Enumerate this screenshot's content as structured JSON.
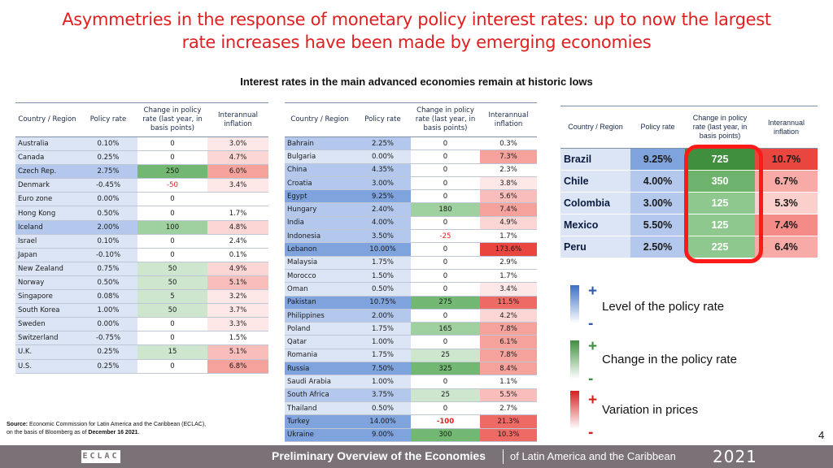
{
  "title": {
    "line1": "Asymmetries in the response of monetary policy interest rates: up to now the largest",
    "line2": "rate increases have been made by emerging economies"
  },
  "subtitle": "Interest rates in the main advanced economies remain at historic lows",
  "table_headers": {
    "country_left": "Country / Region",
    "country_right": "Country / Region",
    "policy_rate": "Policy rate",
    "change": "Change in policy rate (last year, in basis points)",
    "inflation": "Interannual inflation"
  },
  "table_left": [
    {
      "country": "Australia",
      "rate": "0.10%",
      "change": "0",
      "inflation": "3.0%"
    },
    {
      "country": "Canada",
      "rate": "0.25%",
      "change": "0",
      "inflation": "4.7%"
    },
    {
      "country": "Czech Rep.",
      "rate": "2.75%",
      "change": "250",
      "inflation": "6.0%"
    },
    {
      "country": "Denmark",
      "rate": "-0.45%",
      "change": "-50",
      "inflation": "3.4%"
    },
    {
      "country": "Euro zone",
      "rate": "0.00%",
      "change": "0",
      "inflation": ""
    },
    {
      "country": "Hong Kong",
      "rate": "0.50%",
      "change": "0",
      "inflation": "1.7%"
    },
    {
      "country": "Iceland",
      "rate": "2.00%",
      "change": "100",
      "inflation": "4.8%"
    },
    {
      "country": "Israel",
      "rate": "0.10%",
      "change": "0",
      "inflation": "2.4%"
    },
    {
      "country": "Japan",
      "rate": "-0.10%",
      "change": "0",
      "inflation": "0.1%"
    },
    {
      "country": "New Zealand",
      "rate": "0.75%",
      "change": "50",
      "inflation": "4.9%"
    },
    {
      "country": "Norway",
      "rate": "0.50%",
      "change": "50",
      "inflation": "5.1%"
    },
    {
      "country": "Singapore",
      "rate": "0.08%",
      "change": "5",
      "inflation": "3.2%"
    },
    {
      "country": "South Korea",
      "rate": "1.00%",
      "change": "50",
      "inflation": "3.7%"
    },
    {
      "country": "Sweden",
      "rate": "0.00%",
      "change": "0",
      "inflation": "3.3%"
    },
    {
      "country": "Switzerland",
      "rate": "-0.75%",
      "change": "0",
      "inflation": "1.5%"
    },
    {
      "country": "U.K.",
      "rate": "0.25%",
      "change": "15",
      "inflation": "5.1%"
    },
    {
      "country": "U.S.",
      "rate": "0.25%",
      "change": "0",
      "inflation": "6.8%"
    }
  ],
  "table_middle": [
    {
      "country": "Bahrain",
      "rate": "2.25%",
      "change": "0",
      "inflation": "0.3%"
    },
    {
      "country": "Bulgaria",
      "rate": "0.00%",
      "change": "0",
      "inflation": "7.3%"
    },
    {
      "country": "China",
      "rate": "4.35%",
      "change": "0",
      "inflation": "2.3%"
    },
    {
      "country": "Croatia",
      "rate": "3.00%",
      "change": "0",
      "inflation": "3.8%"
    },
    {
      "country": "Egypt",
      "rate": "9.25%",
      "change": "0",
      "inflation": "5.6%"
    },
    {
      "country": "Hungary",
      "rate": "2.40%",
      "change": "180",
      "inflation": "7.4%"
    },
    {
      "country": "India",
      "rate": "4.00%",
      "change": "0",
      "inflation": "4.9%"
    },
    {
      "country": "Indonesia",
      "rate": "3.50%",
      "change": "-25",
      "inflation": "1.7%"
    },
    {
      "country": "Lebanon",
      "rate": "10.00%",
      "change": "0",
      "inflation": "173.6%"
    },
    {
      "country": "Malaysia",
      "rate": "1.75%",
      "change": "0",
      "inflation": "2.9%"
    },
    {
      "country": "Morocco",
      "rate": "1.50%",
      "change": "0",
      "inflation": "1.7%"
    },
    {
      "country": "Oman",
      "rate": "0.50%",
      "change": "0",
      "inflation": "3.4%"
    },
    {
      "country": "Pakistan",
      "rate": "10.75%",
      "change": "275",
      "inflation": "11.5%"
    },
    {
      "country": "Philippines",
      "rate": "2.00%",
      "change": "0",
      "inflation": "4.2%"
    },
    {
      "country": "Poland",
      "rate": "1.75%",
      "change": "165",
      "inflation": "7.8%"
    },
    {
      "country": "Qatar",
      "rate": "1.00%",
      "change": "0",
      "inflation": "6.1%"
    },
    {
      "country": "Romania",
      "rate": "1.75%",
      "change": "25",
      "inflation": "7.8%"
    },
    {
      "country": "Russia",
      "rate": "7.50%",
      "change": "325",
      "inflation": "8.4%"
    },
    {
      "country": "Saudi Arabia",
      "rate": "1.00%",
      "change": "0",
      "inflation": "1.1%"
    },
    {
      "country": "South Africa",
      "rate": "3.75%",
      "change": "25",
      "inflation": "5.5%"
    },
    {
      "country": "Thailand",
      "rate": "0.50%",
      "change": "0",
      "inflation": "2.7%"
    },
    {
      "country": "Turkey",
      "rate": "14.00%",
      "change": "-100",
      "inflation": "21.3%"
    },
    {
      "country": "Ukraine",
      "rate": "9.00%",
      "change": "300",
      "inflation": "10.3%"
    }
  ],
  "table_right": [
    {
      "country": "Brazil",
      "rate": "9.25%",
      "change": "725",
      "inflation": "10.7%"
    },
    {
      "country": "Chile",
      "rate": "4.00%",
      "change": "350",
      "inflation": "6.7%"
    },
    {
      "country": "Colombia",
      "rate": "3.00%",
      "change": "125",
      "inflation": "5.3%"
    },
    {
      "country": "Mexico",
      "rate": "5.50%",
      "change": "125",
      "inflation": "7.4%"
    },
    {
      "country": "Peru",
      "rate": "2.50%",
      "change": "225",
      "inflation": "6.4%"
    }
  ],
  "legend": {
    "plus": "+",
    "minus": "-",
    "level": "Level of the policy rate",
    "change": "Change in the policy rate",
    "prices": "Variation in prices"
  },
  "source": {
    "label": "Source:",
    "line1_rest": " Economic Commission for Latin America and the Caribbean (ECLAC),",
    "line2_prefix": "on the basis of Bloomberg as of ",
    "line2_date": "December 16 2021",
    "line2_suffix": "."
  },
  "page_number": "4",
  "footer": {
    "logo": "ECLAC",
    "title_bold": "Preliminary Overview of the Economies",
    "title_rest": "of Latin America and the Caribbean",
    "year": "2021"
  },
  "colors": {
    "title": "#e02020",
    "rate_blue_light": "#dbe5f5",
    "rate_blue_dark": "#7fa3dc",
    "change_green": "#3f8f3f",
    "inflation_red": "#e8463e",
    "highlight_frame": "#ff1a1a",
    "footer_bg": "#7a7276"
  }
}
